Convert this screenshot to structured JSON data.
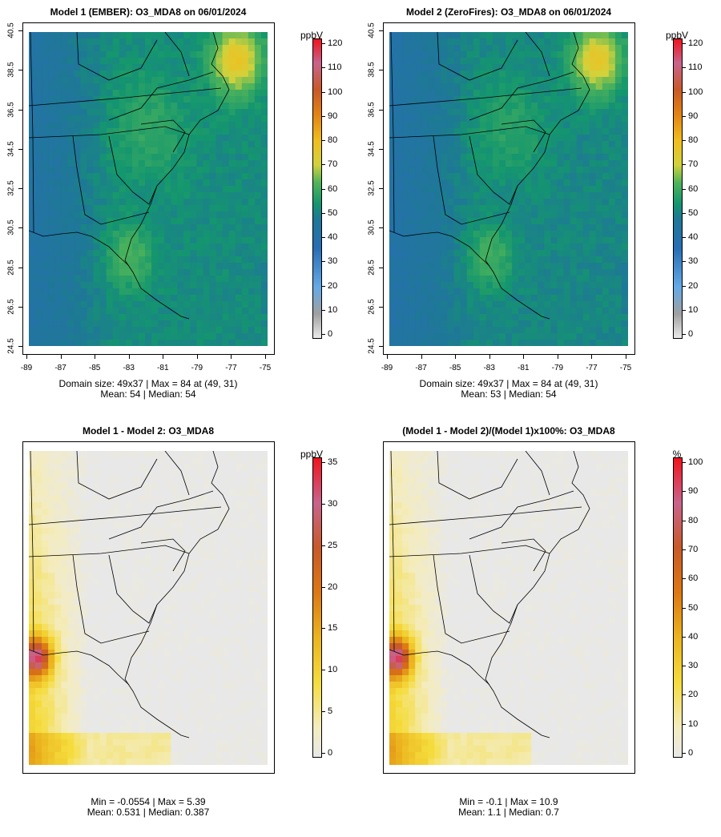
{
  "colors": {
    "field_low": "#1f6fb2",
    "field_mid": "#1a9a6b",
    "field_high": "#f0c020",
    "diff_bg": "#e6e6e6"
  },
  "chart_data": [
    {
      "type": "heatmap",
      "title": "Model 1 (EMBER): O3_MDA8 on 06/01/2024",
      "unit": "ppbV",
      "x_ticks": [
        "-89",
        "-87",
        "-85",
        "-83",
        "-81",
        "-79",
        "-77",
        "-75"
      ],
      "y_ticks": [
        "24.5",
        "26.5",
        "28.5",
        "30.5",
        "32.5",
        "34.5",
        "36.5",
        "38.5",
        "40.5"
      ],
      "colorbar_ticks": [
        "0",
        "10",
        "20",
        "30",
        "40",
        "50",
        "60",
        "70",
        "80",
        "90",
        "100",
        "110",
        "120"
      ],
      "colorbar_range": [
        0,
        120
      ],
      "stats_line1": "Domain size: 49x37 | Max = 84 at (49, 31)",
      "stats_line2": "Mean: 54 |  Median: 54"
    },
    {
      "type": "heatmap",
      "title": "Model 2 (ZeroFires): O3_MDA8 on 06/01/2024",
      "unit": "ppbV",
      "x_ticks": [
        "-89",
        "-87",
        "-85",
        "-83",
        "-81",
        "-79",
        "-77",
        "-75"
      ],
      "y_ticks": [
        "24.5",
        "26.5",
        "28.5",
        "30.5",
        "32.5",
        "34.5",
        "36.5",
        "38.5",
        "40.5"
      ],
      "colorbar_ticks": [
        "0",
        "10",
        "20",
        "30",
        "40",
        "50",
        "60",
        "70",
        "80",
        "90",
        "100",
        "110",
        "120"
      ],
      "colorbar_range": [
        0,
        120
      ],
      "stats_line1": "Domain size: 49x37 | Max = 84 at (49, 31)",
      "stats_line2": "Mean: 53 |  Median: 54"
    },
    {
      "type": "heatmap",
      "title": "Model 1 - Model 2: O3_MDA8",
      "unit": "ppbV",
      "colorbar_ticks": [
        "0",
        "5",
        "10",
        "15",
        "20",
        "25",
        "30",
        "35"
      ],
      "colorbar_range": [
        0,
        35
      ],
      "stats_line1": "Min = -0.0554 | Max = 5.39",
      "stats_line2": "Mean: 0.531 |  Median: 0.387"
    },
    {
      "type": "heatmap",
      "title": "(Model 1 - Model 2)/(Model 1)x100%: O3_MDA8",
      "unit": "%",
      "colorbar_ticks": [
        "0",
        "10",
        "20",
        "30",
        "40",
        "50",
        "60",
        "70",
        "80",
        "90",
        "100"
      ],
      "colorbar_range": [
        0,
        100
      ],
      "stats_line1": "Min = -0.1 | Max = 10.9",
      "stats_line2": "Mean: 1.1 |  Median: 0.7"
    }
  ]
}
